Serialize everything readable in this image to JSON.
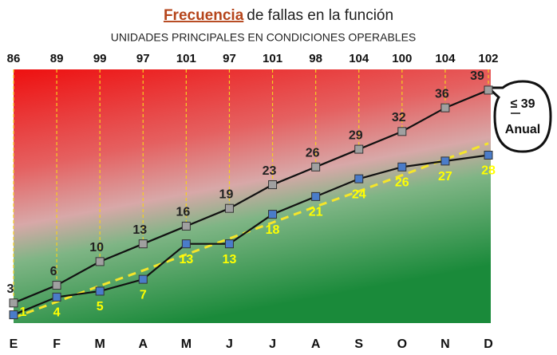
{
  "chart_data": {
    "type": "line",
    "title_emphasis": "Frecuencia",
    "title": "de fallas en la función",
    "subtitle": "UNIDADES PRINCIPALES EN CONDICIONES OPERABLES",
    "categories": [
      "E",
      "F",
      "M",
      "A",
      "M",
      "J",
      "J",
      "A",
      "S",
      "O",
      "N",
      "D"
    ],
    "units": [
      86,
      89,
      99,
      97,
      101,
      97,
      101,
      98,
      104,
      100,
      104,
      102
    ],
    "series": [
      {
        "color": "#a0a0a0",
        "label_color": "#222222",
        "values": [
          3,
          6,
          10,
          13,
          16,
          19,
          23,
          26,
          29,
          32,
          36,
          39
        ]
      },
      {
        "color": "#4a7cc9",
        "label_color": "#ffff00",
        "values": [
          1,
          4,
          5,
          7,
          13,
          13,
          18,
          21,
          24,
          26,
          27,
          28
        ]
      },
      {
        "color": "#f5e52a",
        "dashed": true,
        "values": [
          0.5,
          3.2,
          5.9,
          8.5,
          11.2,
          13.9,
          16.6,
          19.3,
          21.9,
          24.6,
          27.3,
          30
        ]
      }
    ],
    "ylim": [
      -0.4,
      42.5
    ],
    "annotation": {
      "symbol": "≤ 39",
      "label": "Anual"
    }
  }
}
